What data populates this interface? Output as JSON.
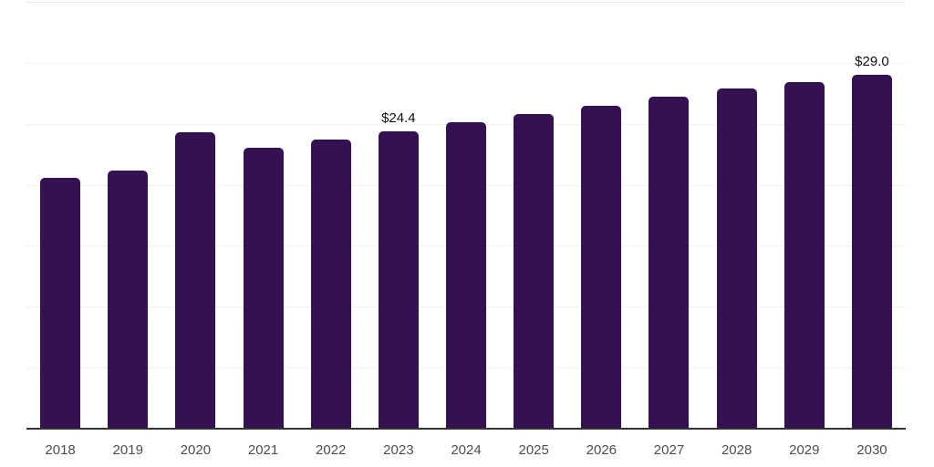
{
  "chart_data": {
    "type": "bar",
    "categories": [
      "2018",
      "2019",
      "2020",
      "2021",
      "2022",
      "2023",
      "2024",
      "2025",
      "2026",
      "2027",
      "2028",
      "2029",
      "2030"
    ],
    "values": [
      20.6,
      21.2,
      24.3,
      23.0,
      23.7,
      24.4,
      25.1,
      25.8,
      26.5,
      27.2,
      27.9,
      28.4,
      29.0
    ],
    "annotations": [
      {
        "category": "2023",
        "label": "$24.4"
      },
      {
        "category": "2030",
        "label": "$29.0"
      }
    ],
    "title": "",
    "xlabel": "",
    "ylabel": "",
    "ylim": [
      0,
      35
    ],
    "gridline_step": 5,
    "grid": true,
    "legend": "none",
    "colors": {
      "bar": "#341151",
      "axis_line": "#333333",
      "gridline": "#f1f1f1",
      "top_gridline": "#e8e8e8",
      "tick_label": "#4d4d4d",
      "annotation_text": "#111111",
      "background": "#ffffff"
    }
  }
}
